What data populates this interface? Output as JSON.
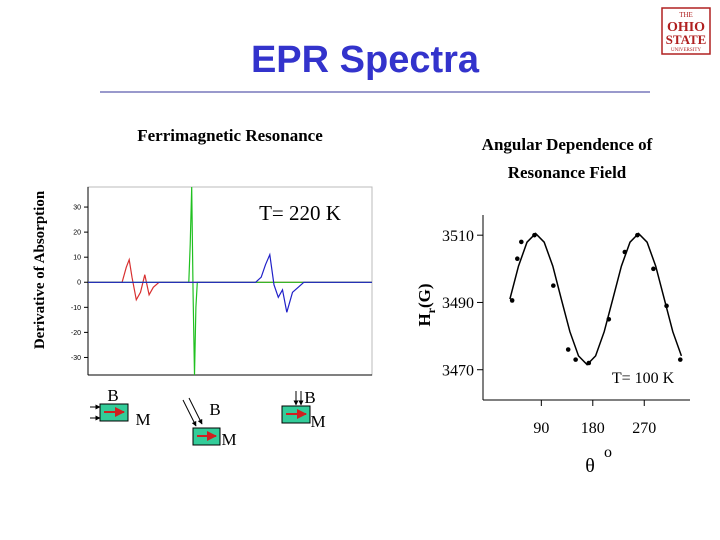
{
  "slide": {
    "title": "EPR Spectra",
    "logo": [
      "THE",
      "OHIO",
      "STATE",
      "UNIVERSITY"
    ]
  },
  "chart_data": [
    {
      "type": "line",
      "title": "Ferrimagnetic Resonance",
      "y_label": "Derivative of Absorption",
      "annotation": "T= 220 K",
      "xlim": [
        0,
        100
      ],
      "ylim": [
        -37,
        38
      ],
      "yticks": [
        30,
        20,
        10,
        0,
        -10,
        -20,
        -30
      ],
      "grid": false,
      "series": [
        {
          "color": "#d83030",
          "x": [
            0,
            12,
            13.5,
            14.5,
            15.5,
            17,
            18.5,
            20,
            21.5,
            23,
            25,
            100
          ],
          "values": [
            0,
            0,
            6,
            9,
            2,
            -7,
            -4,
            3,
            -5,
            -2,
            0,
            0
          ]
        },
        {
          "color": "#20c020",
          "x": [
            0,
            35.5,
            36,
            36.5,
            37,
            37.5,
            38,
            38.5,
            100
          ],
          "values": [
            0,
            0,
            15,
            38,
            -5,
            -37,
            -10,
            0,
            0
          ]
        },
        {
          "color": "#2020c8",
          "x": [
            0,
            59,
            61,
            62.5,
            64,
            65.5,
            67,
            68.5,
            70,
            72,
            74,
            76,
            100
          ],
          "values": [
            0,
            0,
            2,
            7,
            11,
            -1,
            -6,
            -3,
            -12,
            -4,
            -2,
            0,
            0
          ]
        }
      ]
    },
    {
      "type": "scatter",
      "title": [
        "Angular Dependence of",
        "Resonance Field"
      ],
      "y_label": [
        "H",
        "r",
        "(G)"
      ],
      "x_label": [
        "θ",
        "o"
      ],
      "annotation": "T= 100 K",
      "xlim": [
        -12,
        350
      ],
      "ylim": [
        3461,
        3516
      ],
      "xticks": [
        90,
        180,
        270
      ],
      "yticks": [
        3510,
        3490,
        3470
      ],
      "grid": false,
      "series": [
        {
          "type": "scatter",
          "color": "#000000",
          "x": [
            39,
            48,
            55,
            78,
            111,
            137,
            150,
            173,
            208,
            236,
            258,
            286,
            309,
            333
          ],
          "values": [
            3490.6,
            3503,
            3508,
            3510,
            3495,
            3476,
            3473,
            3472,
            3485,
            3505,
            3510,
            3500,
            3489,
            3473
          ]
        },
        {
          "type": "line",
          "color": "#000000",
          "x": [
            35,
            50,
            65,
            80,
            95,
            110,
            125,
            140,
            155,
            170,
            185,
            200,
            215,
            230,
            245,
            260,
            275,
            290,
            305,
            320,
            335
          ],
          "values": [
            3491,
            3500.8,
            3507.9,
            3510.5,
            3507.9,
            3500.8,
            3491,
            3481.3,
            3474.1,
            3471.5,
            3474.1,
            3481.3,
            3491,
            3500.8,
            3507.9,
            3510.5,
            3507.9,
            3500.8,
            3491,
            3481.3,
            3474.1
          ]
        }
      ]
    }
  ],
  "diagrams": [
    {
      "labels": [
        "B",
        "M"
      ]
    },
    {
      "labels": [
        "B",
        "M"
      ]
    },
    {
      "labels": [
        "B",
        "M"
      ]
    }
  ]
}
